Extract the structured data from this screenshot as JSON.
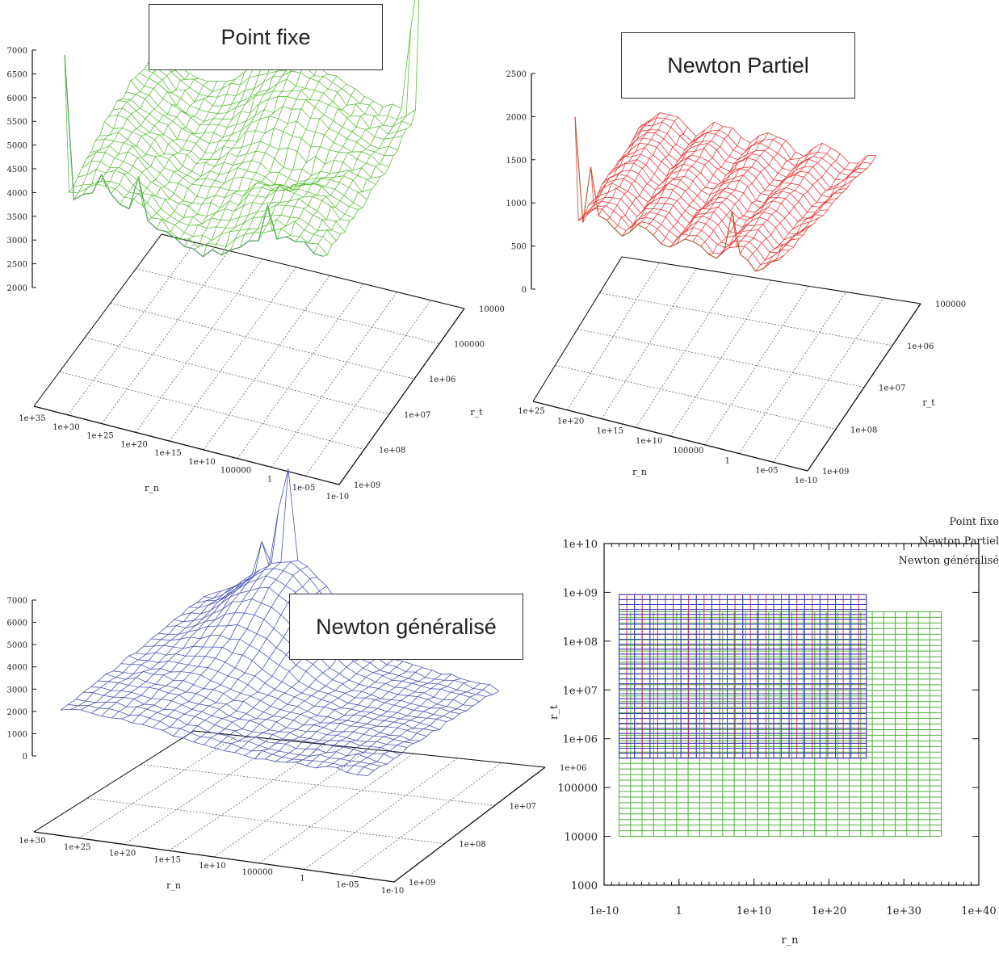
{
  "chart_data": [
    {
      "type": "surface3d",
      "title": "Point fixe",
      "xlabel": "r_n",
      "ylabel": "r_t",
      "zticks": [
        "7000",
        "6500",
        "6000",
        "5500",
        "5000",
        "4500",
        "4000",
        "3500",
        "3000",
        "2500",
        "2000"
      ],
      "xticks": [
        "1e+35",
        "1e+30",
        "1e+25",
        "1e+20",
        "1e+15",
        "1e+10",
        "100000",
        "1",
        "1e-05",
        "1e-10"
      ],
      "yticks": [
        "1e+09",
        "1e+08",
        "1e+07",
        "1e+06",
        "100000",
        "10000"
      ],
      "colors": {
        "surface": "#5cbf3a",
        "underside": "#4455aa"
      }
    },
    {
      "type": "surface3d",
      "title": "Newton Partiel",
      "xlabel": "r_n",
      "ylabel": "r_t",
      "zticks": [
        "2500",
        "2000",
        "1500",
        "1000",
        "500",
        "0"
      ],
      "xticks": [
        "1e+25",
        "1e+20",
        "1e+15",
        "1e+10",
        "100000",
        "1",
        "1e-05",
        "1e-10"
      ],
      "yticks": [
        "1e+09",
        "1e+08",
        "1e+07",
        "1e+06",
        "100000"
      ],
      "colors": {
        "surface": "#e83a3a",
        "underside": "#5cbf3a"
      }
    },
    {
      "type": "surface3d",
      "title": "Newton généralisé",
      "xlabel": "r_n",
      "ylabel": "",
      "zticks": [
        "7000",
        "6000",
        "5000",
        "4000",
        "3000",
        "2000",
        "1000",
        "0"
      ],
      "xticks": [
        "1e+30",
        "1e+25",
        "1e+20",
        "1e+15",
        "1e+10",
        "100000",
        "1",
        "1e-05",
        "1e-10"
      ],
      "yticks": [
        "1e+09",
        "1e+08",
        "1e+07",
        "1e+06"
      ],
      "colors": {
        "surface": "#4a55b5"
      }
    },
    {
      "type": "grid",
      "xlabel": "r_n",
      "ylabel": "r_t",
      "xscale": "log",
      "yscale": "log",
      "xticks": [
        "1e-10",
        "1",
        "1e+10",
        "1e+20",
        "1e+30",
        "1e+40"
      ],
      "yticks": [
        "1e+10",
        "1e+09",
        "1e+08",
        "1e+07",
        "1e+06",
        "100000",
        "10000",
        "1000"
      ],
      "legend": [
        "Point fixe",
        "Newton Partiel",
        "Newton généralisé"
      ],
      "legend_position": "top-right",
      "series": [
        {
          "name": "Point fixe",
          "color": "#4caf3a",
          "x_range": [
            1e-08,
            1e+35
          ],
          "y_range": [
            10000,
            400000000
          ]
        },
        {
          "name": "Newton Partiel",
          "color": "#cc2b6b",
          "x_range": [
            1e-08,
            1e+25
          ],
          "y_range": [
            400000,
            900000000
          ]
        },
        {
          "name": "Newton généralisé",
          "color": "#3a44b8",
          "x_range": [
            1e-08,
            1e+25
          ],
          "y_range": [
            400000,
            900000000
          ]
        }
      ]
    }
  ]
}
